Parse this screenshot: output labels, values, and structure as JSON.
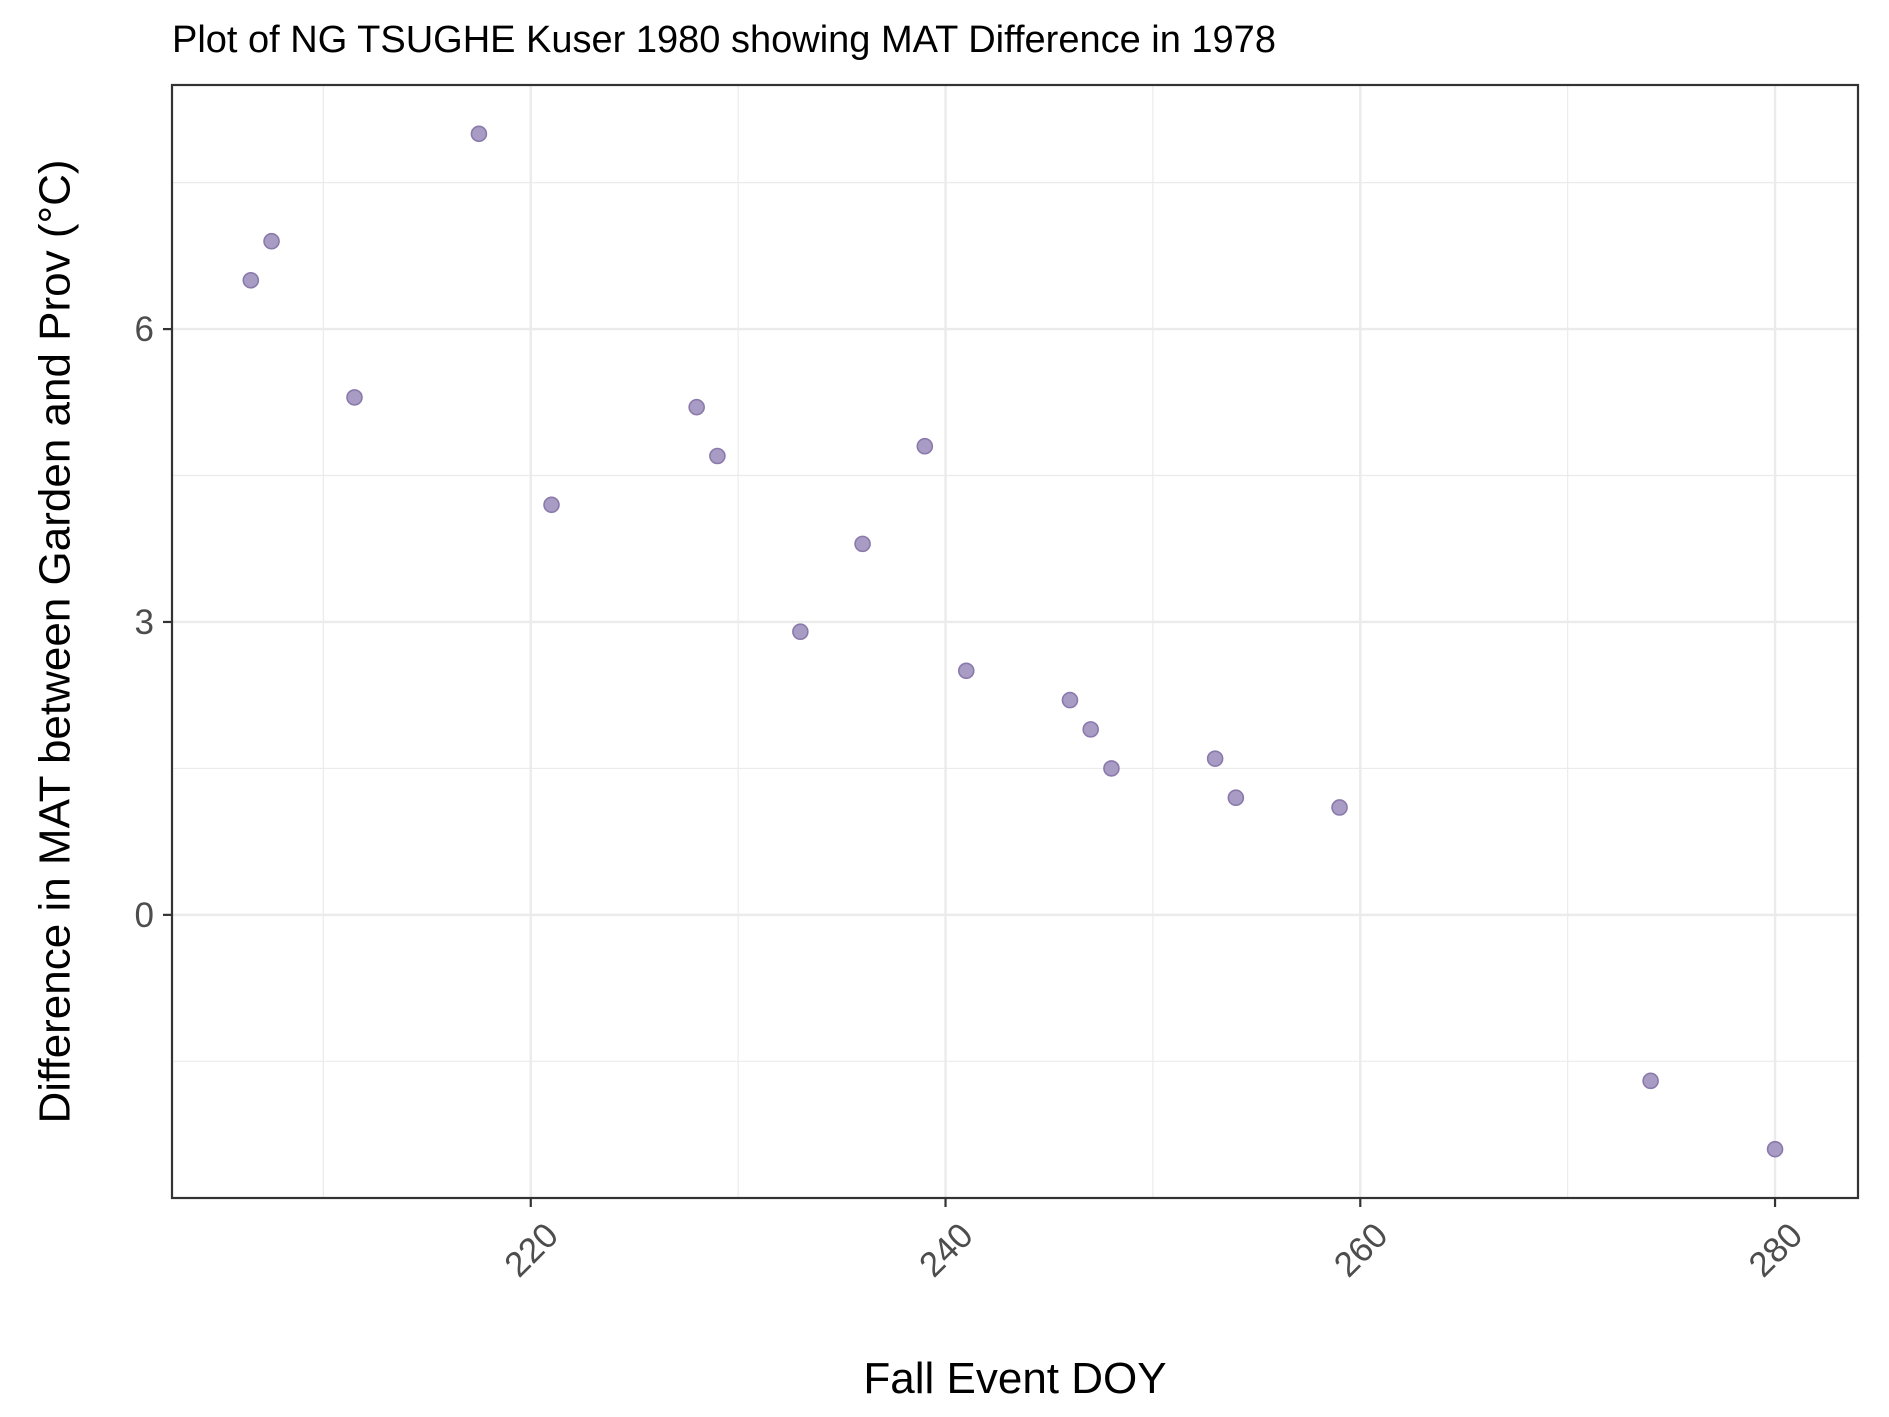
{
  "chart_data": {
    "type": "scatter",
    "title": "Plot of NG TSUGHE Kuser 1980 showing MAT Difference in 1978",
    "xlabel": "Fall Event DOY",
    "ylabel": "Difference in MAT between Garden and Prov (°C)",
    "xlim": [
      202.7,
      284
    ],
    "ylim": [
      -2.9,
      8.5
    ],
    "x_ticks": [
      220,
      240,
      260,
      280
    ],
    "y_ticks": [
      0,
      3,
      6
    ],
    "x_tick_labels": [
      "220",
      "240",
      "260",
      "280"
    ],
    "y_tick_labels": [
      "0",
      "3",
      "6"
    ],
    "grid": true,
    "legend": "none",
    "point_fill": "#a99cc4",
    "point_stroke": "#8a7aab",
    "points": [
      {
        "x": 206.5,
        "y": 6.5
      },
      {
        "x": 207.5,
        "y": 6.9
      },
      {
        "x": 211.5,
        "y": 5.3
      },
      {
        "x": 217.5,
        "y": 8.0
      },
      {
        "x": 221.0,
        "y": 4.2
      },
      {
        "x": 228.0,
        "y": 5.2
      },
      {
        "x": 229.0,
        "y": 4.7
      },
      {
        "x": 233.0,
        "y": 2.9
      },
      {
        "x": 236.0,
        "y": 3.8
      },
      {
        "x": 239.0,
        "y": 4.8
      },
      {
        "x": 241.0,
        "y": 2.5
      },
      {
        "x": 246.0,
        "y": 2.2
      },
      {
        "x": 247.0,
        "y": 1.9
      },
      {
        "x": 248.0,
        "y": 1.5
      },
      {
        "x": 253.0,
        "y": 1.6
      },
      {
        "x": 254.0,
        "y": 1.2
      },
      {
        "x": 259.0,
        "y": 1.1
      },
      {
        "x": 274.0,
        "y": -1.7
      },
      {
        "x": 280.0,
        "y": -2.4
      }
    ]
  }
}
